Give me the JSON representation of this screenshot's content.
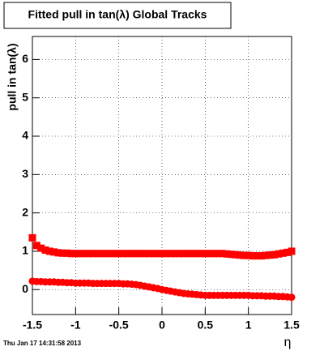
{
  "chart_data": {
    "type": "scatter",
    "title": "Fitted pull in tan(λ)  Global Tracks",
    "y_label": "pull in tan(λ)",
    "x_label": "η",
    "footer": "Thu Jan 17 14:31:58 2013",
    "x": [
      -1.5,
      -1.45,
      -1.4,
      -1.35,
      -1.3,
      -1.25,
      -1.2,
      -1.15,
      -1.1,
      -1.05,
      -1,
      -0.95,
      -0.9,
      -0.85,
      -0.8,
      -0.75,
      -0.7,
      -0.65,
      -0.6,
      -0.55,
      -0.5,
      -0.45,
      -0.4,
      -0.35,
      -0.3,
      -0.25,
      -0.2,
      -0.15,
      -0.1,
      -0.05,
      0,
      0.05,
      0.1,
      0.15,
      0.2,
      0.25,
      0.3,
      0.35,
      0.4,
      0.45,
      0.5,
      0.55,
      0.6,
      0.65,
      0.7,
      0.75,
      0.8,
      0.85,
      0.9,
      0.95,
      1,
      1.05,
      1.1,
      1.15,
      1.2,
      1.25,
      1.3,
      1.35,
      1.4,
      1.45,
      1.5
    ],
    "series": [
      {
        "marker": "square",
        "color": "#ff0000",
        "values": [
          1.35,
          1.15,
          1.08,
          1.03,
          1.0,
          0.98,
          0.96,
          0.95,
          0.95,
          0.94,
          0.94,
          0.94,
          0.94,
          0.94,
          0.94,
          0.94,
          0.94,
          0.94,
          0.94,
          0.94,
          0.94,
          0.94,
          0.94,
          0.94,
          0.94,
          0.94,
          0.94,
          0.94,
          0.94,
          0.94,
          0.94,
          0.94,
          0.94,
          0.94,
          0.94,
          0.94,
          0.94,
          0.94,
          0.94,
          0.94,
          0.94,
          0.94,
          0.94,
          0.94,
          0.94,
          0.93,
          0.92,
          0.91,
          0.9,
          0.89,
          0.89,
          0.88,
          0.88,
          0.88,
          0.89,
          0.9,
          0.91,
          0.93,
          0.95,
          0.97,
          1.0
        ]
      },
      {
        "marker": "circle",
        "color": "#ff0000",
        "values": [
          0.22,
          0.21,
          0.21,
          0.2,
          0.2,
          0.2,
          0.19,
          0.19,
          0.18,
          0.18,
          0.17,
          0.17,
          0.17,
          0.17,
          0.16,
          0.16,
          0.16,
          0.16,
          0.16,
          0.16,
          0.16,
          0.15,
          0.15,
          0.14,
          0.13,
          0.11,
          0.09,
          0.07,
          0.05,
          0.03,
          0.0,
          -0.02,
          -0.04,
          -0.06,
          -0.08,
          -0.1,
          -0.11,
          -0.12,
          -0.13,
          -0.14,
          -0.15,
          -0.15,
          -0.15,
          -0.15,
          -0.15,
          -0.15,
          -0.15,
          -0.15,
          -0.15,
          -0.15,
          -0.15,
          -0.16,
          -0.16,
          -0.16,
          -0.17,
          -0.17,
          -0.17,
          -0.18,
          -0.18,
          -0.19,
          -0.2
        ]
      }
    ],
    "xlim": [
      -1.5,
      1.5
    ],
    "xticks": [
      -1.5,
      -1,
      -0.5,
      0,
      0.5,
      1,
      1.5
    ],
    "ylim": [
      -0.65,
      6.6
    ],
    "yticks": [
      0,
      1,
      2,
      3,
      4,
      5,
      6
    ],
    "grid": true
  }
}
